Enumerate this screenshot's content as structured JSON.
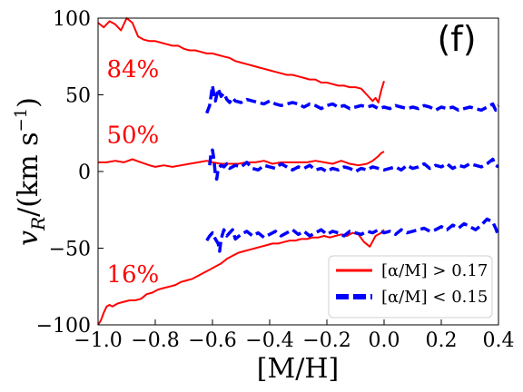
{
  "chart_data": {
    "type": "line",
    "panel_label": "(f)",
    "xlabel": "[M/H]",
    "ylabel": "v_R/(km s^-1)",
    "ylabel_main": "v",
    "ylabel_sub": "R",
    "ylabel_rest": "/(km s",
    "ylabel_sup": "−1",
    "ylabel_close": ")",
    "xlim": [
      -1.0,
      0.4
    ],
    "ylim": [
      -100,
      100
    ],
    "xticks": [
      -1.0,
      -0.8,
      -0.6,
      -0.4,
      -0.2,
      0.0,
      0.2,
      0.4
    ],
    "xtick_labels": [
      "−1.0",
      "−0.8",
      "−0.6",
      "−0.4",
      "−0.2",
      "0.0",
      "0.2",
      "0.4"
    ],
    "yticks": [
      -100,
      -50,
      0,
      50,
      100
    ],
    "ytick_labels": [
      "−100",
      "−50",
      "0",
      "50",
      "100"
    ],
    "percentile_labels": [
      {
        "text": "84%",
        "x": -0.97,
        "y": 67
      },
      {
        "text": "50%",
        "x": -0.97,
        "y": 24
      },
      {
        "text": "16%",
        "x": -0.97,
        "y": -67
      }
    ],
    "legend": {
      "position": "lower-right",
      "entries": [
        {
          "label": "[α/M] > 0.17",
          "color": "#ff0000",
          "style": "solid"
        },
        {
          "label": "[α/M] < 0.15",
          "color": "#0000ff",
          "style": "dashed"
        }
      ]
    },
    "series": [
      {
        "group": "[α/M] > 0.17",
        "percentile": "84%",
        "color": "#ff0000",
        "style": "solid",
        "x": [
          -1.0,
          -0.98,
          -0.96,
          -0.94,
          -0.92,
          -0.9,
          -0.88,
          -0.86,
          -0.84,
          -0.82,
          -0.8,
          -0.78,
          -0.76,
          -0.74,
          -0.72,
          -0.7,
          -0.68,
          -0.66,
          -0.64,
          -0.62,
          -0.6,
          -0.58,
          -0.56,
          -0.54,
          -0.52,
          -0.5,
          -0.48,
          -0.46,
          -0.44,
          -0.42,
          -0.4,
          -0.38,
          -0.36,
          -0.34,
          -0.32,
          -0.3,
          -0.28,
          -0.26,
          -0.24,
          -0.22,
          -0.2,
          -0.18,
          -0.16,
          -0.14,
          -0.12,
          -0.1,
          -0.08,
          -0.06,
          -0.04,
          -0.03,
          -0.02,
          -0.01,
          0.0
        ],
        "y": [
          97,
          94,
          98,
          96,
          92,
          100,
          97,
          88,
          86,
          85,
          85,
          84,
          83,
          82,
          82,
          80,
          79,
          79,
          78,
          77,
          77,
          76,
          75,
          74,
          72,
          71,
          70,
          69,
          68,
          67,
          66,
          65,
          64,
          63,
          63,
          62,
          61,
          60,
          60,
          58,
          58,
          57,
          56,
          56,
          55,
          55,
          54,
          50,
          46,
          48,
          45,
          53,
          59
        ]
      },
      {
        "group": "[α/M] > 0.17",
        "percentile": "50%",
        "color": "#ff0000",
        "style": "solid",
        "x": [
          -1.0,
          -0.97,
          -0.94,
          -0.91,
          -0.88,
          -0.85,
          -0.82,
          -0.8,
          -0.77,
          -0.74,
          -0.71,
          -0.68,
          -0.65,
          -0.62,
          -0.6,
          -0.57,
          -0.54,
          -0.51,
          -0.48,
          -0.45,
          -0.42,
          -0.39,
          -0.36,
          -0.33,
          -0.3,
          -0.27,
          -0.24,
          -0.21,
          -0.18,
          -0.15,
          -0.12,
          -0.09,
          -0.06,
          -0.04,
          -0.02,
          -0.01,
          0.0
        ],
        "y": [
          6,
          6,
          7,
          6,
          8,
          6,
          4,
          3,
          4,
          3,
          4,
          5,
          6,
          7,
          6,
          5,
          5,
          5,
          6,
          6,
          7,
          5,
          6,
          6,
          6,
          6,
          7,
          6,
          5,
          7,
          5,
          4,
          5,
          7,
          10,
          12,
          13
        ]
      },
      {
        "group": "[α/M] > 0.17",
        "percentile": "16%",
        "color": "#ff0000",
        "style": "solid",
        "x": [
          -1.0,
          -0.99,
          -0.98,
          -0.97,
          -0.96,
          -0.95,
          -0.93,
          -0.91,
          -0.89,
          -0.87,
          -0.85,
          -0.83,
          -0.81,
          -0.79,
          -0.77,
          -0.75,
          -0.73,
          -0.71,
          -0.69,
          -0.67,
          -0.65,
          -0.63,
          -0.61,
          -0.59,
          -0.57,
          -0.55,
          -0.53,
          -0.51,
          -0.49,
          -0.47,
          -0.45,
          -0.43,
          -0.41,
          -0.39,
          -0.37,
          -0.35,
          -0.33,
          -0.31,
          -0.29,
          -0.27,
          -0.25,
          -0.23,
          -0.21,
          -0.19,
          -0.17,
          -0.15,
          -0.13,
          -0.11,
          -0.09,
          -0.07,
          -0.05,
          -0.03,
          -0.01,
          0.0
        ],
        "y": [
          -100,
          -97,
          -92,
          -88,
          -87,
          -88,
          -86,
          -85,
          -84,
          -84,
          -83,
          -80,
          -79,
          -77,
          -76,
          -75,
          -74,
          -72,
          -71,
          -70,
          -68,
          -66,
          -64,
          -62,
          -60,
          -57,
          -55,
          -53,
          -52,
          -51,
          -50,
          -49,
          -48,
          -47,
          -47,
          -46,
          -45,
          -45,
          -44,
          -44,
          -43,
          -43,
          -42,
          -43,
          -42,
          -41,
          -42,
          -40,
          -41,
          -46,
          -49,
          -42,
          -40,
          -38
        ]
      },
      {
        "group": "[α/M] < 0.15",
        "percentile": "84%",
        "color": "#0000ff",
        "style": "dashed",
        "x": [
          -0.62,
          -0.61,
          -0.6,
          -0.595,
          -0.59,
          -0.58,
          -0.57,
          -0.56,
          -0.55,
          -0.54,
          -0.53,
          -0.52,
          -0.5,
          -0.48,
          -0.46,
          -0.44,
          -0.42,
          -0.4,
          -0.38,
          -0.36,
          -0.34,
          -0.32,
          -0.3,
          -0.28,
          -0.26,
          -0.24,
          -0.22,
          -0.2,
          -0.18,
          -0.16,
          -0.14,
          -0.12,
          -0.1,
          -0.08,
          -0.06,
          -0.04,
          -0.02,
          0.0,
          0.02,
          0.04,
          0.06,
          0.08,
          0.1,
          0.12,
          0.14,
          0.16,
          0.18,
          0.2,
          0.22,
          0.24,
          0.26,
          0.28,
          0.3,
          0.32,
          0.34,
          0.36,
          0.38,
          0.39,
          0.4
        ],
        "y": [
          38,
          43,
          56,
          50,
          46,
          54,
          49,
          51,
          47,
          45,
          48,
          46,
          45,
          47,
          46,
          45,
          44,
          46,
          44,
          43,
          44,
          45,
          44,
          42,
          44,
          43,
          41,
          43,
          44,
          42,
          43,
          41,
          42,
          43,
          42,
          43,
          41,
          42,
          41,
          43,
          42,
          41,
          42,
          41,
          43,
          42,
          40,
          42,
          41,
          42,
          40,
          41,
          42,
          41,
          40,
          42,
          44,
          40,
          43
        ]
      },
      {
        "group": "[α/M] < 0.15",
        "percentile": "50%",
        "color": "#0000ff",
        "style": "dashed",
        "x": [
          -0.61,
          -0.605,
          -0.6,
          -0.595,
          -0.59,
          -0.585,
          -0.58,
          -0.57,
          -0.56,
          -0.55,
          -0.54,
          -0.52,
          -0.5,
          -0.48,
          -0.46,
          -0.44,
          -0.42,
          -0.4,
          -0.38,
          -0.36,
          -0.34,
          -0.32,
          -0.3,
          -0.28,
          -0.26,
          -0.24,
          -0.22,
          -0.2,
          -0.18,
          -0.16,
          -0.14,
          -0.12,
          -0.1,
          -0.08,
          -0.06,
          -0.04,
          -0.02,
          0.0,
          0.02,
          0.04,
          0.06,
          0.08,
          0.1,
          0.12,
          0.14,
          0.16,
          0.18,
          0.2,
          0.22,
          0.24,
          0.26,
          0.28,
          0.3,
          0.32,
          0.34,
          0.36,
          0.38,
          0.39,
          0.4
        ],
        "y": [
          4,
          12,
          14,
          8,
          -2,
          -5,
          2,
          4,
          3,
          5,
          2,
          4,
          3,
          6,
          2,
          1,
          4,
          3,
          2,
          5,
          3,
          1,
          3,
          2,
          4,
          1,
          2,
          0,
          2,
          1,
          3,
          2,
          0,
          2,
          1,
          3,
          2,
          1,
          2,
          3,
          1,
          4,
          2,
          3,
          5,
          2,
          4,
          3,
          5,
          2,
          4,
          3,
          5,
          4,
          3,
          5,
          8,
          4,
          3
        ]
      },
      {
        "group": "[α/M] < 0.15",
        "percentile": "16%",
        "color": "#0000ff",
        "style": "dashed",
        "x": [
          -0.62,
          -0.61,
          -0.6,
          -0.59,
          -0.58,
          -0.575,
          -0.57,
          -0.56,
          -0.55,
          -0.54,
          -0.53,
          -0.52,
          -0.5,
          -0.48,
          -0.46,
          -0.44,
          -0.42,
          -0.4,
          -0.38,
          -0.36,
          -0.34,
          -0.32,
          -0.3,
          -0.28,
          -0.26,
          -0.24,
          -0.22,
          -0.2,
          -0.18,
          -0.16,
          -0.14,
          -0.12,
          -0.1,
          -0.08,
          -0.06,
          -0.04,
          -0.02,
          0.0,
          0.02,
          0.04,
          0.06,
          0.08,
          0.1,
          0.12,
          0.14,
          0.16,
          0.18,
          0.2,
          0.22,
          0.24,
          0.26,
          0.28,
          0.3,
          0.32,
          0.34,
          0.36,
          0.38,
          0.39,
          0.4
        ],
        "y": [
          -45,
          -42,
          -40,
          -44,
          -47,
          -52,
          -44,
          -38,
          -42,
          -40,
          -38,
          -44,
          -41,
          -39,
          -42,
          -40,
          -43,
          -41,
          -39,
          -42,
          -40,
          -38,
          -41,
          -39,
          -42,
          -40,
          -38,
          -41,
          -39,
          -40,
          -42,
          -39,
          -40,
          -41,
          -39,
          -40,
          -38,
          -40,
          -39,
          -41,
          -38,
          -40,
          -39,
          -38,
          -37,
          -39,
          -38,
          -36,
          -38,
          -35,
          -37,
          -34,
          -36,
          -38,
          -35,
          -31,
          -33,
          -37,
          -42
        ]
      }
    ]
  }
}
